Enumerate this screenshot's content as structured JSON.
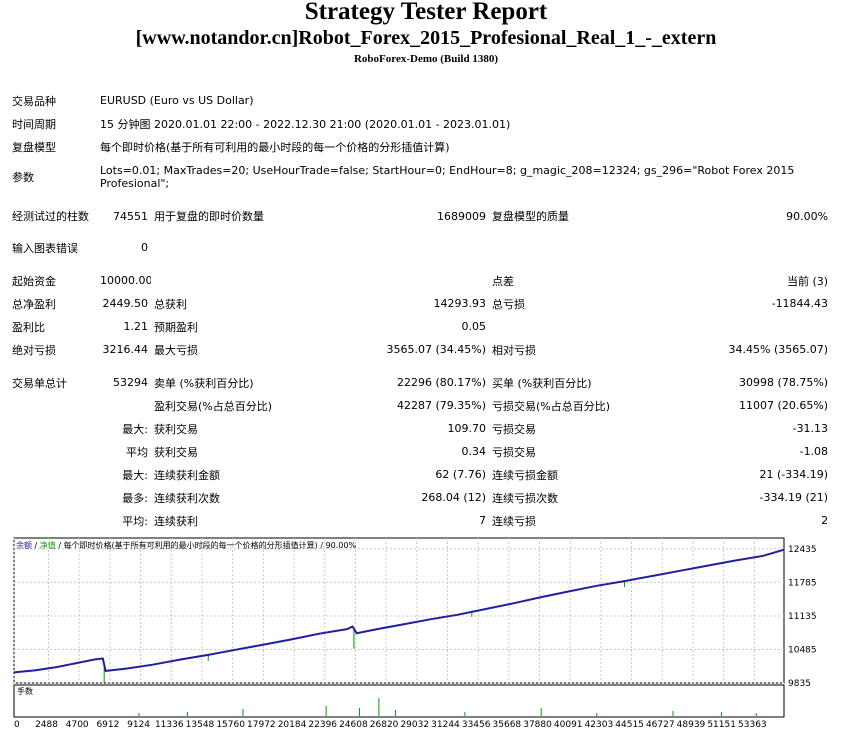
{
  "header": {
    "title": "Strategy Tester Report",
    "ea_name": "[www.notandor.cn]Robot_Forex_2015_Profesional_Real_1_-_extern",
    "server": "RoboForex-Demo (Build 1380)"
  },
  "info": [
    {
      "label": "交易品种",
      "value": "EURUSD (Euro vs US Dollar)"
    },
    {
      "label": "时间周期",
      "value": "15 分钟图 2020.01.01 22:00 - 2022.12.30 21:00 (2020.01.01 - 2023.01.01)"
    },
    {
      "label": "复盘模型",
      "value": "每个即时价格(基于所有可利用的最小时段的每一个价格的分形插值计算)"
    },
    {
      "label": "参数",
      "value": "Lots=0.01; MaxTrades=20; UseHourTrade=false; StartHour=0; EndHour=8; g_magic_208=12324; gs_296=\"Robot Forex 2015 Profesional\";"
    }
  ],
  "bars": {
    "label": "经测试过的柱数",
    "value": "74551",
    "ticks_label": "用于复盘的即时价数量",
    "ticks_value": "1689009",
    "quality_label": "复盘模型的质量",
    "quality_value": "90.00%"
  },
  "mismatch": {
    "label": "输入图表错误",
    "value": "0"
  },
  "deposit": {
    "label": "起始资金",
    "value": "10000.00",
    "spread_label": "点差",
    "spread_value": "当前 (3)"
  },
  "profit": [
    {
      "l1": "总净盈利",
      "v1": "2449.50",
      "l2": "总获利",
      "v2": "14293.93",
      "l3": "总亏损",
      "v3": "-11844.43"
    },
    {
      "l1": "盈利比",
      "v1": "1.21",
      "l2": "预期盈利",
      "v2": "0.05",
      "l3": "",
      "v3": ""
    },
    {
      "l1": "绝对亏损",
      "v1": "3216.44",
      "l2": "最大亏损",
      "v2": "3565.07 (34.45%)",
      "l3": "相对亏损",
      "v3": "34.45% (3565.07)"
    }
  ],
  "trades": {
    "label": "交易单总计",
    "value": "53294",
    "short_label": "卖单 (%获利百分比)",
    "short_value": "22296 (80.17%)",
    "long_label": "买单 (%获利百分比)",
    "long_value": "30998 (78.75%)"
  },
  "stats": [
    {
      "p": "",
      "l1": "盈利交易(%占总百分比)",
      "v1": "42287 (79.35%)",
      "l2": "亏损交易(%占总百分比)",
      "v2": "11007 (20.65%)"
    },
    {
      "p": "最大:",
      "l1": "获利交易",
      "v1": "109.70",
      "l2": "亏损交易",
      "v2": "-31.13"
    },
    {
      "p": "平均",
      "l1": "获利交易",
      "v1": "0.34",
      "l2": "亏损交易",
      "v2": "-1.08"
    },
    {
      "p": "最大:",
      "l1": "连续获利金额",
      "v1": "62 (7.76)",
      "l2": "连续亏损金额",
      "v2": "21 (-334.19)"
    },
    {
      "p": "最多:",
      "l1": "连续获利次数",
      "v1": "268.04 (12)",
      "l2": "连续亏损次数",
      "v2": "-334.19 (21)"
    },
    {
      "p": "平均:",
      "l1": "连续获利",
      "v1": "7",
      "l2": "连续亏损",
      "v2": "2"
    }
  ],
  "chart_data": {
    "type": "line",
    "legend": {
      "balance": "余额",
      "sep": " / ",
      "equity": "净值",
      "rest": " / 每个即时价格(基于所有可利用的最小时段的每一个价格的分形插值计算) / 90.00%"
    },
    "lots_label": "手数",
    "ylim": [
      9835,
      12646
    ],
    "y_ticks": [
      "12435",
      "11785",
      "11135",
      "10485",
      "9835"
    ],
    "xlim": [
      0,
      55500
    ],
    "x_ticks": [
      "0",
      "2488",
      "4700",
      "6912",
      "9124",
      "11336",
      "13548",
      "15760",
      "17972",
      "20184",
      "22396",
      "24608",
      "26820",
      "29032",
      "31244",
      "33456",
      "35668",
      "37880",
      "40091",
      "42303",
      "44515",
      "46727",
      "48939",
      "51151",
      "53363"
    ],
    "series": [
      {
        "values": [
          [
            0,
            10040
          ],
          [
            1500,
            10080
          ],
          [
            3000,
            10140
          ],
          [
            4500,
            10220
          ],
          [
            5800,
            10290
          ],
          [
            6400,
            10310
          ],
          [
            6600,
            10070
          ],
          [
            8000,
            10110
          ],
          [
            10000,
            10190
          ],
          [
            12000,
            10290
          ],
          [
            14000,
            10380
          ],
          [
            16000,
            10480
          ],
          [
            18000,
            10580
          ],
          [
            20000,
            10680
          ],
          [
            22000,
            10790
          ],
          [
            24000,
            10880
          ],
          [
            24400,
            10930
          ],
          [
            24700,
            10800
          ],
          [
            26000,
            10870
          ],
          [
            28000,
            10970
          ],
          [
            30000,
            11070
          ],
          [
            32000,
            11160
          ],
          [
            34000,
            11270
          ],
          [
            36000,
            11380
          ],
          [
            38000,
            11500
          ],
          [
            40000,
            11610
          ],
          [
            42000,
            11720
          ],
          [
            44000,
            11810
          ],
          [
            46000,
            11910
          ],
          [
            48000,
            12010
          ],
          [
            50000,
            12110
          ],
          [
            52000,
            12210
          ],
          [
            54000,
            12300
          ],
          [
            55500,
            12420
          ]
        ]
      }
    ],
    "colors": {
      "balance": "#1f1fa0",
      "equity": "#00a000",
      "grid": "#c8c8c8",
      "frame": "#000000"
    }
  }
}
